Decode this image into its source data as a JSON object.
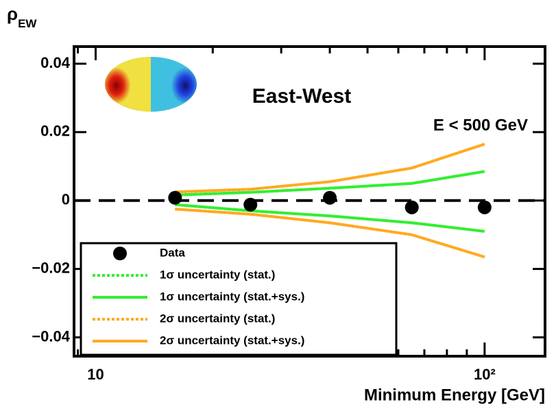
{
  "chart_data": {
    "type": "line",
    "ylabel": {
      "symbol": "ρ",
      "subscript": "EW"
    },
    "xlabel": "Minimum Energy [GeV]",
    "annotations": [
      "East-West",
      "E < 500 GeV"
    ],
    "log_x": true,
    "x": [
      16,
      25,
      40,
      65,
      100
    ],
    "xlim": [
      8.8,
      143
    ],
    "xticks": [
      10,
      {
        "value": 100,
        "label": "10²"
      }
    ],
    "xminorticks": [
      9,
      20,
      30,
      40,
      50,
      60,
      70,
      80,
      90
    ],
    "ylim": [
      -0.0455,
      0.045
    ],
    "yticks": [
      {
        "value": 0.04,
        "label": "0.04"
      },
      {
        "value": 0.02,
        "label": "0.02"
      },
      0,
      {
        "value": -0.02,
        "label": "−0.02"
      },
      {
        "value": -0.04,
        "label": "−0.04"
      }
    ],
    "legend": "lower left",
    "series": [
      {
        "name": "Data",
        "color": "#000000",
        "style": "marker",
        "values": [
          0.0008,
          -0.0012,
          0.0008,
          -0.002,
          -0.002
        ]
      },
      {
        "name": "1σ uncertainty (stat.)",
        "color": "#33ee33",
        "style": "dotted",
        "values": [
          0.0016,
          0.0024,
          0.0036,
          0.005,
          0.0085
        ],
        "lower": [
          -0.0012,
          -0.003,
          -0.0045,
          -0.0065,
          -0.009
        ]
      },
      {
        "name": "1σ uncertainty (stat.+sys.)",
        "color": "#33ee33",
        "style": "solid",
        "values": [
          0.0016,
          0.0024,
          0.0036,
          0.005,
          0.0085
        ],
        "lower": [
          -0.0012,
          -0.003,
          -0.0045,
          -0.0065,
          -0.009
        ]
      },
      {
        "name": "2σ uncertainty (stat.)",
        "color": "#ffaa22",
        "style": "dotted",
        "values": [
          0.0025,
          0.0033,
          0.0055,
          0.0095,
          0.0165
        ],
        "lower": [
          -0.0025,
          -0.004,
          -0.0065,
          -0.01,
          -0.0165
        ]
      },
      {
        "name": "2σ uncertainty (stat.+sys.)",
        "color": "#ffaa22",
        "style": "solid",
        "values": [
          0.0025,
          0.0033,
          0.0055,
          0.0095,
          0.0165
        ],
        "lower": [
          -0.0025,
          -0.004,
          -0.0065,
          -0.01,
          -0.0165
        ]
      }
    ]
  }
}
